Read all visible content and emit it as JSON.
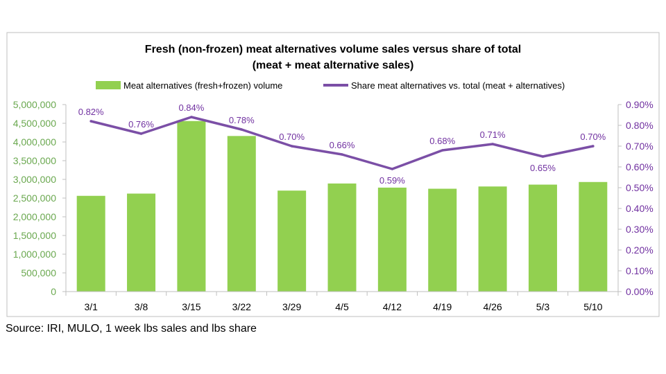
{
  "colors": {
    "bar": "#92d050",
    "line": "#7b4fa6",
    "left_axis_text": "#6aa84f",
    "right_axis_text": "#7030a0",
    "frame": "#bfbfbf"
  },
  "chart_data": {
    "type": "bar",
    "title": "Fresh (non-frozen) meat alternatives volume sales versus share of total",
    "subtitle": "(meat + meat alternative sales)",
    "categories": [
      "3/1",
      "3/8",
      "3/15",
      "3/22",
      "3/29",
      "4/5",
      "4/12",
      "4/19",
      "4/26",
      "5/3",
      "5/10"
    ],
    "series": [
      {
        "name": "Meat alternatives (fresh+frozen) volume",
        "type": "bar",
        "axis": "left",
        "values": [
          2560000,
          2620000,
          4560000,
          4160000,
          2700000,
          2890000,
          2780000,
          2750000,
          2810000,
          2860000,
          2930000
        ]
      },
      {
        "name": "Share meat alternatives vs. total (meat + alternatives)",
        "type": "line",
        "axis": "right",
        "values": [
          0.82,
          0.76,
          0.84,
          0.78,
          0.7,
          0.66,
          0.59,
          0.68,
          0.71,
          0.65,
          0.7
        ],
        "labels": [
          "0.82%",
          "0.76%",
          "0.84%",
          "0.78%",
          "0.70%",
          "0.66%",
          "0.59%",
          "0.68%",
          "0.71%",
          "0.65%",
          "0.70%"
        ]
      }
    ],
    "left_axis": {
      "ylim": [
        0,
        5000000
      ],
      "ticks": [
        0,
        500000,
        1000000,
        1500000,
        2000000,
        2500000,
        3000000,
        3500000,
        4000000,
        4500000,
        5000000
      ],
      "tick_labels": [
        "0",
        "500,000",
        "1,000,000",
        "1,500,000",
        "2,000,000",
        "2,500,000",
        "3,000,000",
        "3,500,000",
        "4,000,000",
        "4,500,000",
        "5,000,000"
      ]
    },
    "right_axis": {
      "ylim": [
        0,
        0.9
      ],
      "ticks": [
        0,
        0.1,
        0.2,
        0.3,
        0.4,
        0.5,
        0.6,
        0.7,
        0.8,
        0.9
      ],
      "tick_labels": [
        "0.00%",
        "0.10%",
        "0.20%",
        "0.30%",
        "0.40%",
        "0.50%",
        "0.60%",
        "0.70%",
        "0.80%",
        "0.90%"
      ]
    },
    "grid": false,
    "legend_position": "top"
  },
  "source_note": "Source: IRI, MULO, 1 week lbs sales and lbs share"
}
